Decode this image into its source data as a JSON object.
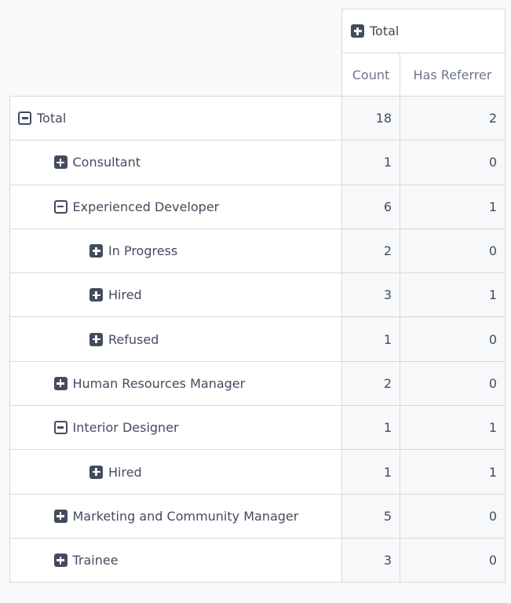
{
  "colors": {
    "text_dark": "#434b5e",
    "text_muted": "#6c7687",
    "border": "#d8d8dd",
    "page_background": "#f8f9fb",
    "value_cell_background": "#f7f8fa",
    "header_cell_background": "#ffffff"
  },
  "column_header": {
    "group_label": "Total",
    "group_state": "collapsed",
    "group_icon": "plus-square-icon"
  },
  "measures": [
    "Count",
    "Has Referrer"
  ],
  "rows": [
    {
      "label": "Total",
      "level": 0,
      "state": "expanded",
      "values": [
        18,
        2
      ]
    },
    {
      "label": "Consultant",
      "level": 1,
      "state": "collapsed",
      "values": [
        1,
        0
      ]
    },
    {
      "label": "Experienced Developer",
      "level": 1,
      "state": "expanded",
      "values": [
        6,
        1
      ]
    },
    {
      "label": "In Progress",
      "level": 2,
      "state": "collapsed",
      "values": [
        2,
        0
      ]
    },
    {
      "label": "Hired",
      "level": 2,
      "state": "collapsed",
      "values": [
        3,
        1
      ]
    },
    {
      "label": "Refused",
      "level": 2,
      "state": "collapsed",
      "values": [
        1,
        0
      ]
    },
    {
      "label": "Human Resources Manager",
      "level": 1,
      "state": "collapsed",
      "values": [
        2,
        0
      ]
    },
    {
      "label": "Interior Designer",
      "level": 1,
      "state": "expanded",
      "values": [
        1,
        1
      ]
    },
    {
      "label": "Hired",
      "level": 2,
      "state": "collapsed",
      "values": [
        1,
        1
      ]
    },
    {
      "label": "Marketing and Community Manager",
      "level": 1,
      "state": "collapsed",
      "values": [
        5,
        0
      ]
    },
    {
      "label": "Trainee",
      "level": 1,
      "state": "collapsed",
      "values": [
        3,
        0
      ]
    }
  ]
}
